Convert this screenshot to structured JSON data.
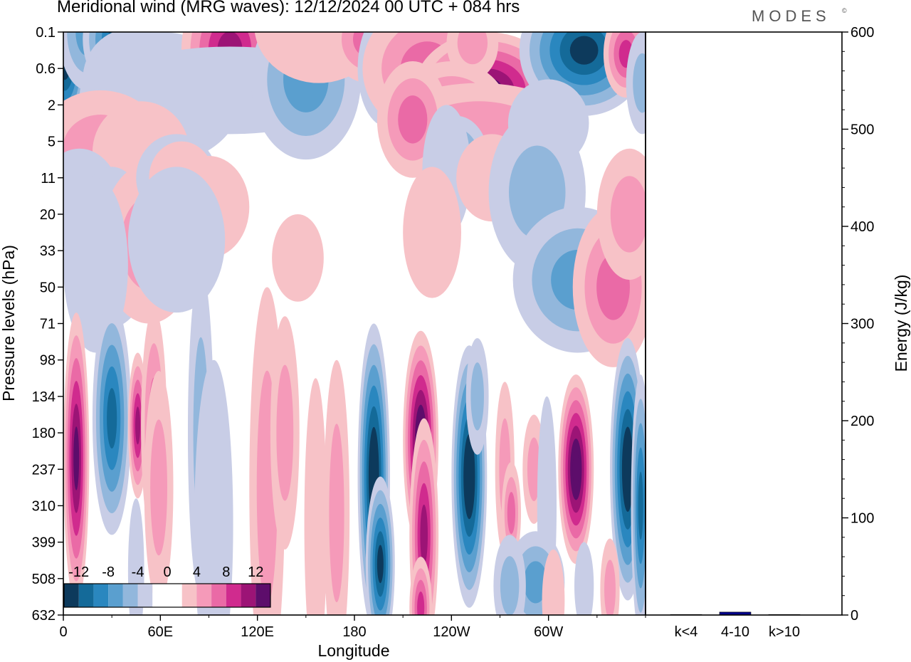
{
  "header": {
    "title": "Meridional wind (MRG waves):  12/12/2024  00 UTC  + 084 hrs",
    "logo": "MODES",
    "logo_mark": "©"
  },
  "chart_data": [
    {
      "type": "heatmap",
      "title": "Meridional wind (MRG waves):  12/12/2024  00 UTC  + 084 hrs",
      "xlabel": "Longitude",
      "ylabel": "Pressure levels (hPa)",
      "x_ticks": [
        "0",
        "60E",
        "120E",
        "180",
        "120W",
        "60W"
      ],
      "y_ticks": [
        "0.1",
        "0.6",
        "2",
        "5",
        "11",
        "20",
        "33",
        "50",
        "71",
        "98",
        "134",
        "180",
        "237",
        "310",
        "399",
        "508",
        "632"
      ],
      "colorbar": {
        "labels": [
          "-12",
          "-8",
          "-4",
          "0",
          "4",
          "8",
          "12"
        ],
        "levels": [
          -14,
          -12,
          -10,
          -8,
          -6,
          -4,
          -2,
          0,
          2,
          4,
          6,
          8,
          10,
          12,
          14
        ],
        "colors": [
          "#0d3a5c",
          "#146a99",
          "#2a87bf",
          "#5a9fcf",
          "#92b7dc",
          "#c8cde6",
          "#ffffff",
          "#ffffff",
          "#f7c2c7",
          "#f59ab9",
          "#ea6aa6",
          "#d02b8e",
          "#9c1476",
          "#5d0d6b"
        ]
      },
      "blobs": [
        {
          "lon": 0.8,
          "lev": 0.6,
          "w": 14,
          "h": 2.2,
          "v": -14
        },
        {
          "lon": 15,
          "lev": 0.0,
          "w": 18,
          "h": 1.6,
          "v": -6
        },
        {
          "lon": 37,
          "lev": 0.2,
          "w": 25,
          "h": 1.5,
          "v": -12
        },
        {
          "lon": 42,
          "lev": 1.3,
          "w": 30,
          "h": 1.4,
          "v": -6
        },
        {
          "lon": 60,
          "lev": 1.8,
          "w": 50,
          "h": 1.8,
          "v": -4
        },
        {
          "lon": 103,
          "lev": 0.5,
          "w": 30,
          "h": 2.0,
          "v": 11
        },
        {
          "lon": 103,
          "lev": 1.6,
          "w": 80,
          "h": 1.2,
          "v": -3
        },
        {
          "lon": 150,
          "lev": 1.3,
          "w": 34,
          "h": 2.2,
          "v": -6
        },
        {
          "lon": 158,
          "lev": -0.2,
          "w": 40,
          "h": 1.6,
          "v": 3
        },
        {
          "lon": 189,
          "lev": 0.2,
          "w": 24,
          "h": 1.2,
          "v": 6
        },
        {
          "lon": 200,
          "lev": 1.0,
          "w": 18,
          "h": 1.6,
          "v": -4
        },
        {
          "lon": 225,
          "lev": 1.0,
          "w": 40,
          "h": 1.8,
          "v": 7
        },
        {
          "lon": 246,
          "lev": 1.2,
          "w": 16,
          "h": 1.0,
          "v": 9
        },
        {
          "lon": 262,
          "lev": 1.6,
          "w": 45,
          "h": 1.6,
          "v": 13
        },
        {
          "lon": 240,
          "lev": 2.2,
          "w": 35,
          "h": 1.4,
          "v": 7
        },
        {
          "lon": 257,
          "lev": 2.6,
          "w": 60,
          "h": 1.2,
          "v": 4
        },
        {
          "lon": 216,
          "lev": 2.4,
          "w": 22,
          "h": 1.6,
          "v": 6
        },
        {
          "lon": 243,
          "lev": 3.5,
          "w": 20,
          "h": 1.2,
          "v": -6
        },
        {
          "lon": 237,
          "lev": 3.8,
          "w": 15,
          "h": 1.8,
          "v": -3
        },
        {
          "lon": 253,
          "lev": 0.3,
          "w": 16,
          "h": 1.0,
          "v": 5
        },
        {
          "lon": 322,
          "lev": 0.5,
          "w": 40,
          "h": 1.8,
          "v": -13
        },
        {
          "lon": 348,
          "lev": 0.6,
          "w": 14,
          "h": 1.2,
          "v": 8
        },
        {
          "lon": 358,
          "lev": 1.4,
          "w": 10,
          "h": 1.4,
          "v": -5
        },
        {
          "lon": 300,
          "lev": 2.5,
          "w": 25,
          "h": 1.2,
          "v": -3
        },
        {
          "lon": 23,
          "lev": 3.2,
          "w": 40,
          "h": 1.6,
          "v": 4
        },
        {
          "lon": 48,
          "lev": 3.3,
          "w": 30,
          "h": 1.4,
          "v": 2
        },
        {
          "lon": 10,
          "lev": 4.6,
          "w": 25,
          "h": 1.4,
          "v": -2
        },
        {
          "lon": 30,
          "lev": 5.9,
          "w": 25,
          "h": 2.2,
          "v": -4
        },
        {
          "lon": 53,
          "lev": 5.8,
          "w": 30,
          "h": 2.2,
          "v": 4
        },
        {
          "lon": 20,
          "lev": 6.4,
          "w": 20,
          "h": 2.4,
          "v": -3
        },
        {
          "lon": 70,
          "lev": 4.0,
          "w": 25,
          "h": 1.2,
          "v": -2
        },
        {
          "lon": 73,
          "lev": 4.0,
          "w": 20,
          "h": 1.0,
          "v": 3
        },
        {
          "lon": 90,
          "lev": 4.8,
          "w": 25,
          "h": 1.4,
          "v": 2
        },
        {
          "lon": 70,
          "lev": 5.7,
          "w": 30,
          "h": 2.0,
          "v": -3
        },
        {
          "lon": 145,
          "lev": 6.2,
          "w": 16,
          "h": 1.2,
          "v": 2
        },
        {
          "lon": 228,
          "lev": 5.5,
          "w": 18,
          "h": 1.8,
          "v": 2
        },
        {
          "lon": 265,
          "lev": 4.0,
          "w": 22,
          "h": 1.2,
          "v": 3
        },
        {
          "lon": 293,
          "lev": 4.4,
          "w": 30,
          "h": 2.2,
          "v": -4
        },
        {
          "lon": 318,
          "lev": 6.8,
          "w": 40,
          "h": 2.0,
          "v": -6
        },
        {
          "lon": 340,
          "lev": 7.0,
          "w": 25,
          "h": 2.2,
          "v": 6
        },
        {
          "lon": 350,
          "lev": 5.0,
          "w": 20,
          "h": 1.8,
          "v": 5
        },
        {
          "lon": 8,
          "lev": 11.7,
          "w": 8,
          "h": 4.0,
          "v": 12
        },
        {
          "lon": 30,
          "lev": 10.6,
          "w": 12,
          "h": 3.2,
          "v": -11
        },
        {
          "lon": 46,
          "lev": 10.8,
          "w": 6,
          "h": 2.0,
          "v": 10
        },
        {
          "lon": 56,
          "lev": 10.8,
          "w": 8,
          "h": 3.2,
          "v": 6
        },
        {
          "lon": 59,
          "lev": 12.5,
          "w": 9,
          "h": 3.2,
          "v": 4
        },
        {
          "lon": 85,
          "lev": 11.0,
          "w": 8,
          "h": 4.5,
          "v": -4
        },
        {
          "lon": 93,
          "lev": 13.5,
          "w": 12,
          "h": 4.5,
          "v": -2
        },
        {
          "lon": 126,
          "lev": 12.5,
          "w": 11,
          "h": 5.5,
          "v": 5
        },
        {
          "lon": 137,
          "lev": 11.0,
          "w": 9,
          "h": 3.2,
          "v": 4
        },
        {
          "lon": 156,
          "lev": 13.5,
          "w": 7,
          "h": 4.0,
          "v": 3
        },
        {
          "lon": 169,
          "lev": 13.2,
          "w": 8,
          "h": 4.2,
          "v": 5
        },
        {
          "lon": 192,
          "lev": 12.2,
          "w": 10,
          "h": 4.2,
          "v": -14
        },
        {
          "lon": 196,
          "lev": 14.6,
          "w": 9,
          "h": 2.4,
          "v": -12
        },
        {
          "lon": 221,
          "lev": 11.2,
          "w": 11,
          "h": 3.0,
          "v": 14
        },
        {
          "lon": 223,
          "lev": 13.8,
          "w": 9,
          "h": 3.2,
          "v": 10
        },
        {
          "lon": 221,
          "lev": 15.8,
          "w": 7,
          "h": 1.4,
          "v": 8
        },
        {
          "lon": 251,
          "lev": 12.2,
          "w": 11,
          "h": 3.6,
          "v": -14
        },
        {
          "lon": 256,
          "lev": 10.0,
          "w": 7,
          "h": 1.6,
          "v": -5
        },
        {
          "lon": 273,
          "lev": 12.0,
          "w": 6,
          "h": 2.4,
          "v": 5
        },
        {
          "lon": 277,
          "lev": 13.2,
          "w": 6,
          "h": 1.4,
          "v": 7
        },
        {
          "lon": 291,
          "lev": 12.0,
          "w": 7,
          "h": 1.5,
          "v": 5
        },
        {
          "lon": 299,
          "lev": 13.0,
          "w": 6,
          "h": 3.0,
          "v": -3
        },
        {
          "lon": 317,
          "lev": 12.0,
          "w": 11,
          "h": 2.6,
          "v": 14
        },
        {
          "lon": 349,
          "lev": 12.0,
          "w": 11,
          "h": 3.6,
          "v": -14
        },
        {
          "lon": 357,
          "lev": 13.0,
          "w": 6,
          "h": 3.6,
          "v": -11
        },
        {
          "lon": 292,
          "lev": 15.1,
          "w": 18,
          "h": 1.4,
          "v": -6
        },
        {
          "lon": 276,
          "lev": 15.2,
          "w": 10,
          "h": 1.4,
          "v": -4
        },
        {
          "lon": 303,
          "lev": 15.6,
          "w": 7,
          "h": 1.4,
          "v": 3
        },
        {
          "lon": 322,
          "lev": 15.2,
          "w": 6,
          "h": 1.2,
          "v": -3
        },
        {
          "lon": 338,
          "lev": 15.3,
          "w": 6,
          "h": 1.4,
          "v": 4
        },
        {
          "lon": 45,
          "lev": 14.8,
          "w": 5,
          "h": 2.0,
          "v": -3
        }
      ]
    },
    {
      "type": "bar",
      "categories": [
        "k<4",
        "4-10",
        "k>10"
      ],
      "values": [
        0.5,
        3,
        0.5
      ],
      "ylabel": "Energy (J/kg)",
      "ylim": [
        0,
        600
      ],
      "y_ticks": [
        "0",
        "100",
        "200",
        "300",
        "400",
        "500",
        "600"
      ],
      "bar_color": "#00008b"
    }
  ]
}
